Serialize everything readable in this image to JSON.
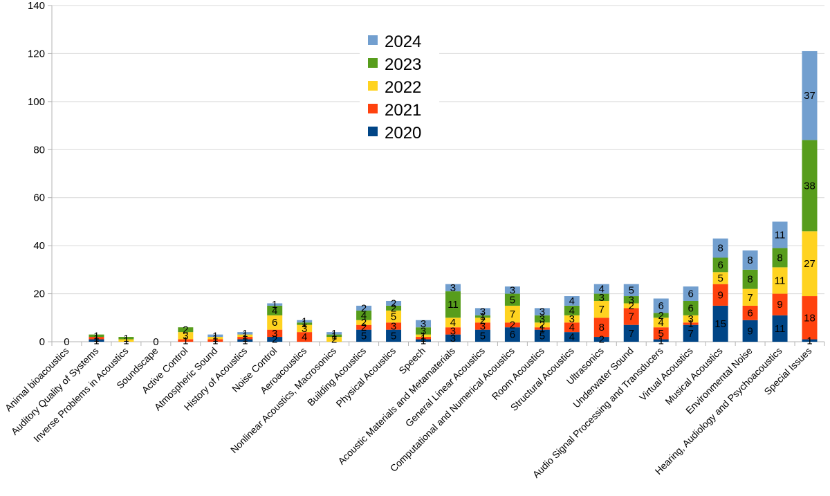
{
  "chart_data": {
    "type": "bar",
    "stacked": true,
    "title": "",
    "xlabel": "",
    "ylabel": "",
    "ylim": [
      0,
      140
    ],
    "yticks": [
      0,
      20,
      40,
      60,
      80,
      100,
      120,
      140
    ],
    "grid": true,
    "legend_position": "top-center",
    "categories": [
      "Animal bioacoustics",
      "Auditory Quality of Systems",
      "Inverse Problems in Acoustics",
      "Soundscape",
      "Active Control",
      "Atmospheric Sound",
      "History of Acoustics",
      "Noise Control",
      "Aeroacoustics",
      "Nonlinear Acoustics, Macrosonics",
      "Building Acoustics",
      "Physical Acoustics",
      "Speech",
      "Acoustic Materials and Metamaterials",
      "General Linear Acoustics",
      "Computational and Numerical Acoustics",
      "Room Acoustics",
      "Structural Acoustics",
      "Ultrasonics",
      "Underwater Sound",
      "Audio Signal Processing and Transducers",
      "Virtual Acoustics",
      "Musical Acoustics",
      "Environmental Noise",
      "Hearing, Audiology and Psychoacoustics",
      "Special Issues"
    ],
    "series": [
      {
        "name": "2020",
        "color": "#004586",
        "values": [
          0,
          1,
          0,
          0,
          0,
          0,
          1,
          2,
          0,
          0,
          5,
          5,
          1,
          3,
          5,
          6,
          5,
          4,
          2,
          7,
          1,
          7,
          15,
          9,
          11,
          1
        ]
      },
      {
        "name": "2021",
        "color": "#ff420e",
        "values": [
          0,
          1,
          0,
          0,
          1,
          1,
          1,
          3,
          4,
          0,
          2,
          3,
          1,
          3,
          3,
          2,
          1,
          4,
          8,
          7,
          5,
          1,
          9,
          6,
          9,
          18
        ]
      },
      {
        "name": "2022",
        "color": "#ffd320",
        "values": [
          0,
          0,
          1,
          0,
          3,
          1,
          1,
          6,
          3,
          2,
          2,
          5,
          1,
          4,
          2,
          7,
          2,
          3,
          7,
          2,
          4,
          3,
          5,
          7,
          11,
          27
        ]
      },
      {
        "name": "2023",
        "color": "#579d1c",
        "values": [
          0,
          1,
          1,
          0,
          2,
          0,
          0,
          4,
          1,
          1,
          4,
          2,
          3,
          11,
          1,
          5,
          3,
          4,
          3,
          3,
          2,
          6,
          6,
          8,
          8,
          38
        ]
      },
      {
        "name": "2024",
        "color": "#83caff",
        "values": [
          0,
          0,
          0,
          0,
          0,
          1,
          1,
          1,
          1,
          1,
          2,
          2,
          3,
          3,
          3,
          3,
          3,
          4,
          4,
          5,
          6,
          6,
          8,
          8,
          11,
          37
        ]
      }
    ],
    "series_colors_drawn": {
      "2024": "#729fcf"
    },
    "zero_labels": [
      {
        "category": 0,
        "text": "0"
      },
      {
        "category": 3,
        "text": "0"
      }
    ]
  }
}
